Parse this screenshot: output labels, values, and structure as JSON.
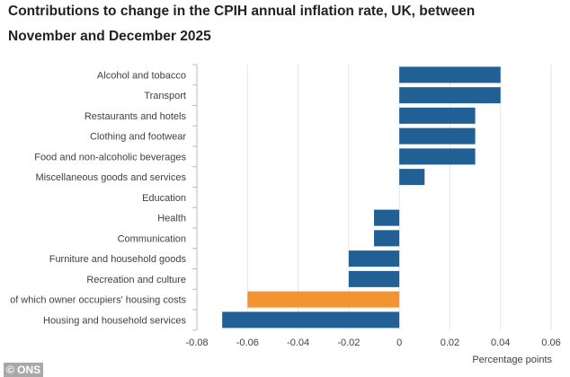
{
  "chart_data": {
    "type": "bar",
    "orientation": "horizontal",
    "title_line1": "Contributions to change in the CPIH annual inflation rate, UK, between",
    "title_line2": "November and December 2025",
    "xlabel": "Percentage points",
    "xlim": [
      -0.08,
      0.06
    ],
    "xticks": [
      "-0.08",
      "-0.06",
      "-0.04",
      "-0.02",
      "0",
      "0.02",
      "0.04",
      "0.06"
    ],
    "grid": true,
    "categories": [
      "Alcohol and tobacco",
      "Transport",
      "Restaurants and hotels",
      "Clothing and footwear",
      "Food and non-alcoholic beverages",
      "Miscellaneous goods and services",
      "Education",
      "Health",
      "Communication",
      "Furniture and household goods",
      "Recreation and culture",
      "of which owner occupiers' housing costs",
      "Housing and household services"
    ],
    "values": [
      0.04,
      0.04,
      0.03,
      0.03,
      0.03,
      0.01,
      0,
      -0.01,
      -0.01,
      -0.02,
      -0.02,
      -0.06,
      -0.07
    ],
    "colors": {
      "default": "#206095",
      "highlight": "#f39431"
    },
    "highlight_index": 11
  },
  "credit": "© ONS"
}
